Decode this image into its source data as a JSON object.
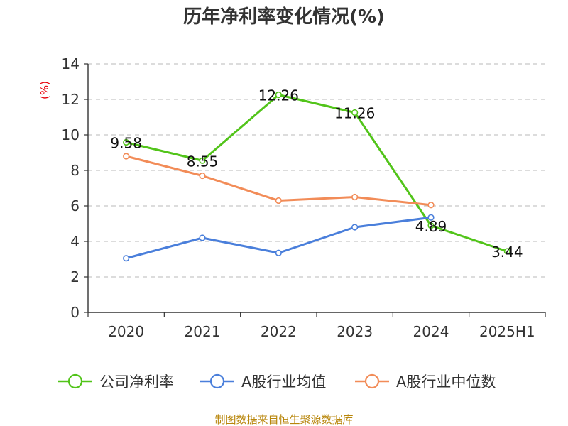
{
  "chart_data": {
    "type": "line",
    "title": "历年净利率变化情况(%)",
    "ylabel": "(%)",
    "xlabel": "",
    "categories": [
      "2020",
      "2021",
      "2022",
      "2023",
      "2024",
      "2025H1"
    ],
    "ylim": [
      0,
      14
    ],
    "yticks": [
      0,
      2,
      4,
      6,
      8,
      10,
      12,
      14
    ],
    "grid": "horizontal dashed",
    "legend_position": "bottom",
    "series": [
      {
        "name": "公司净利率",
        "color": "#52c41a",
        "values": [
          9.58,
          8.55,
          12.26,
          11.26,
          4.89,
          3.44
        ],
        "labels": [
          "9.58",
          "8.55",
          "12.26",
          "11.26",
          "4.89",
          "3.44"
        ]
      },
      {
        "name": "A股行业均值",
        "color": "#4a7fdb",
        "values": [
          3.05,
          4.2,
          3.35,
          4.8,
          5.35,
          null
        ]
      },
      {
        "name": "A股行业中位数",
        "color": "#f28c58",
        "values": [
          8.8,
          7.7,
          6.3,
          6.5,
          6.05,
          null
        ]
      }
    ],
    "source": "制图数据来自恒生聚源数据库"
  }
}
